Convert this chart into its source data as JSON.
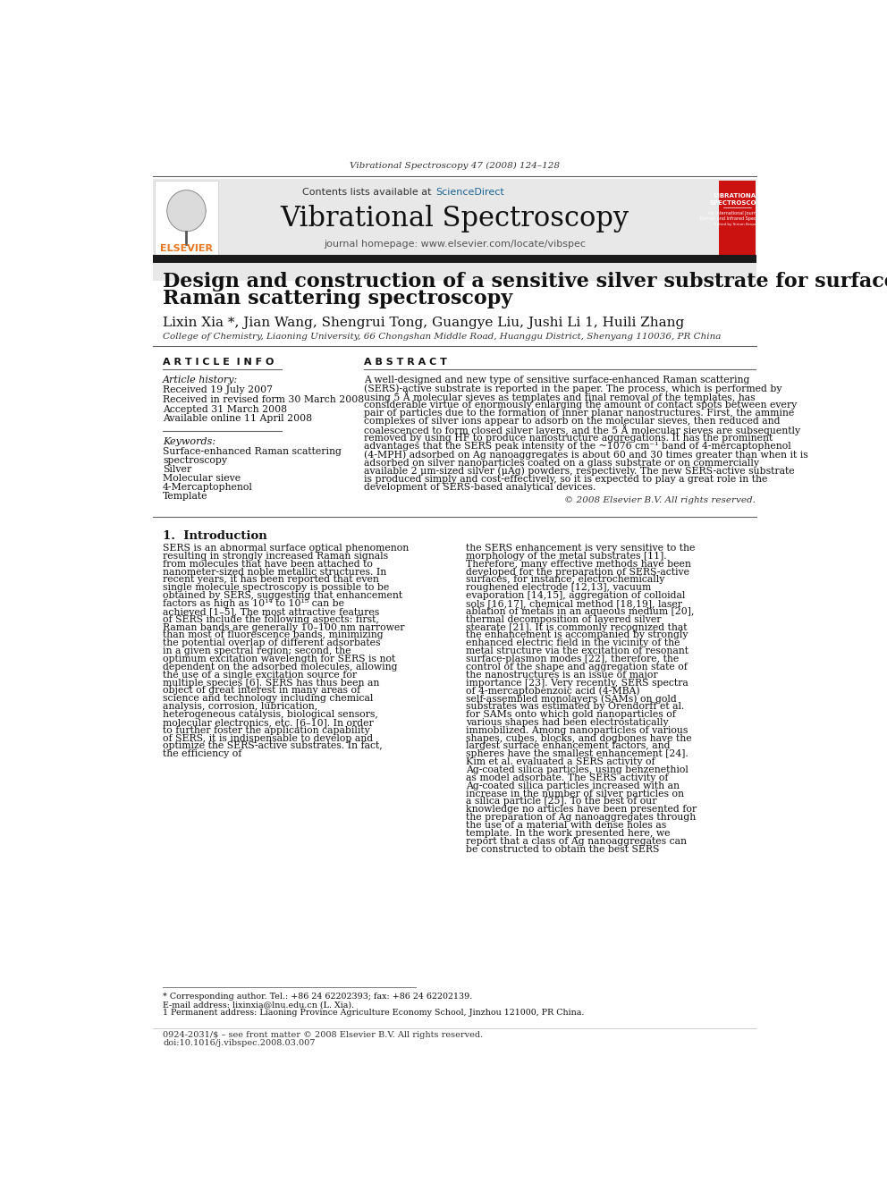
{
  "page_bg": "#ffffff",
  "top_journal_line": "Vibrational Spectroscopy 47 (2008) 124–128",
  "header_bg": "#e8e8e8",
  "contents_line": "Contents lists available at ScienceDirect",
  "sciencedirect_color": "#1a6496",
  "journal_title": "Vibrational Spectroscopy",
  "homepage_line": "journal homepage: www.elsevier.com/locate/vibspec",
  "black_bar_color": "#1a1a1a",
  "paper_title_line1": "Design and construction of a sensitive silver substrate for surface-enhanced",
  "paper_title_line2": "Raman scattering spectroscopy",
  "authors": "Lixin Xia *, Jian Wang, Shengrui Tong, Guangye Liu, Jushi Li 1, Huili Zhang",
  "affiliation": "College of Chemistry, Liaoning University, 66 Chongshan Middle Road, Huanggu District, Shenyang 110036, PR China",
  "article_info_title": "A R T I C L E  I N F O",
  "article_history_label": "Article history:",
  "article_history": [
    "Received 19 July 2007",
    "Received in revised form 30 March 2008",
    "Accepted 31 March 2008",
    "Available online 11 April 2008"
  ],
  "keywords_label": "Keywords:",
  "keywords": [
    "Surface-enhanced Raman scattering",
    "spectroscopy",
    "Silver",
    "Molecular sieve",
    "4-Mercaptophenol",
    "Template"
  ],
  "abstract_title": "A B S T R A C T",
  "abstract_text": "A well-designed and new type of sensitive surface-enhanced Raman scattering (SERS)-active substrate is reported in the paper. The process, which is performed by using 5 Å molecular sieves as templates and final removal of the templates, has considerable virtue of enormously enlarging the amount of contact spots between every pair of particles due to the formation of inner planar nanostructures. First, the ammine complexes of silver ions appear to adsorb on the molecular sieves, then reduced and coalescenced to form closed silver layers, and the 5 Å molecular sieves are subsequently removed by using HF to produce nanostructure aggregations. It has the prominent advantages that the SERS peak intensity of the ~1076 cm⁻¹ band of 4-mercaptophenol (4-MPH) adsorbed on Ag nanoaggregates is about 60 and 30 times greater than when it is adsorbed on silver nanoparticles coated on a glass substrate or on commercially available 2 μm-sized silver (μAg) powders, respectively. The new SERS-active substrate is produced simply and cost-effectively, so it is expected to play a great role in the development of SERS-based analytical devices.",
  "copyright_line": "© 2008 Elsevier B.V. All rights reserved.",
  "section1_title": "1.  Introduction",
  "intro_col1": "SERS is an abnormal surface optical phenomenon resulting in strongly increased Raman signals from molecules that have been attached to nanometer-sized noble metallic structures. In recent years, it has been reported that even single molecule spectroscopy is possible to be obtained by SERS, suggesting that enhancement factors as high as 10¹⁴ to 10¹⁵ can be achieved [1–5]. The most attractive features of SERS include the following aspects: first, Raman bands are generally 10–100 nm narrower than most of fluorescence bands, minimizing the potential overlap of different adsorbates in a given spectral region; second, the optimum excitation wavelength for SERS is not dependent on the adsorbed molecules, allowing the use of a single excitation source for multiple species [6]. SERS has thus been an object of great interest in many areas of science and technology including chemical analysis, corrosion, lubrication, heterogeneous catalysis, biological sensors, molecular electronics, etc. [6–10]. In order to further foster the application capability of SERS, it is indispensable to develop and optimize the SERS-active substrates. In fact, the efficiency of",
  "intro_col2": "the SERS enhancement is very sensitive to the morphology of the metal substrates [11]. Therefore, many effective methods have been developed for the preparation of SERS-active surfaces, for instance, electrochemically roughened electrode [12,13], vacuum evaporation [14,15], aggregation of colloidal sols [16,17], chemical method [18,19], laser ablation of metals in an aqueous medium [20], thermal decomposition of layered silver stearate [21]. It is commonly recognized that the enhancement is accompanied by strongly enhanced electric field in the vicinity of the metal structure via the excitation of resonant surface-plasmon modes [22], therefore, the control of the shape and aggregation state of the nanostructures is an issue of major importance [23]. Very recently, SERS spectra of 4-mercaptobenzoic acid (4-MBA) self-assembled monolayers (SAMs) on gold substrates was estimated by Orendorff et al. for SAMs onto which gold nanoparticles of various shapes had been electrostatically immobilized. Among nanoparticles of various shapes, cubes, blocks, and dogbones have the largest surface enhancement factors, and spheres have the smallest enhancement [24]. Kim et al. evaluated a SERS activity of Ag-coated silica particles, using benzenethiol as model adsorbate. The SERS activity of Ag-coated silica particles increased with an increase in the number of silver particles on a silica particle [25]. To the best of our knowledge no articles have been presented for the preparation of Ag nanoaggregates through the use of a material with dense holes as template.    In the work presented here, we report that a class of Ag nanoaggregates can be constructed to obtain the best SERS",
  "footnote1": "* Corresponding author. Tel.: +86 24 62202393; fax: +86 24 62202139.",
  "footnote2": "E-mail address: lixinxia@lnu.edu.cn (L. Xia).",
  "footnote3": "1 Permanent address: Liaoning Province Agriculture Economy School, Jinzhou 121000, PR China.",
  "footer_line1": "0924-2031/$ – see front matter © 2008 Elsevier B.V. All rights reserved.",
  "footer_line2": "doi:10.1016/j.vibspec.2008.03.007"
}
